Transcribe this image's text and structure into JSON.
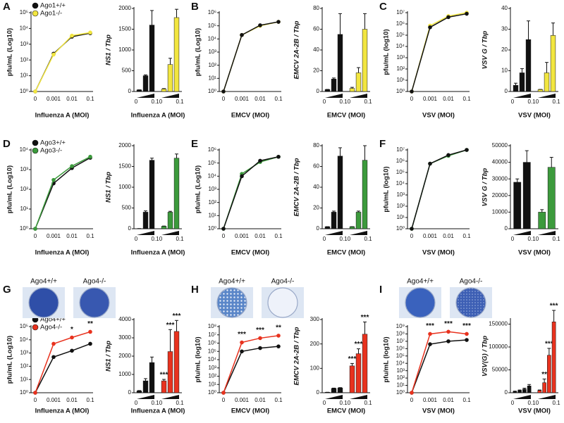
{
  "chart_data": [
    {
      "type": "line",
      "panel": "A",
      "yscale": "log",
      "categories": [
        "0",
        "0.001",
        "0.01",
        "0.1"
      ],
      "xlabel": "Influenza A (MOI)",
      "ylabel": "pfu/mL (Log10)",
      "ylim": [
        1,
        100000
      ],
      "yticks": [
        {
          "value": 1,
          "label": "10⁰"
        },
        {
          "value": 10,
          "label": "10¹"
        },
        {
          "value": 100,
          "label": "10²"
        },
        {
          "value": 1000,
          "label": "10³"
        },
        {
          "value": 10000,
          "label": "10⁴"
        },
        {
          "value": 100000,
          "label": "10⁵"
        }
      ],
      "legend": "upper left",
      "series": [
        {
          "name": "Ago1+/+",
          "color": "#111111",
          "values": [
            1,
            250,
            3000,
            5000
          ]
        },
        {
          "name": "Ago1-/-",
          "color": "#f2e640",
          "values": [
            1,
            220,
            3500,
            5500
          ]
        }
      ]
    },
    {
      "type": "bar",
      "xlabel": "Influenza A (MOI)",
      "ylabel": "NS1 / Tbp",
      "ylim": [
        0,
        2000
      ],
      "yticks": [
        0,
        500,
        1000,
        1500,
        2000
      ],
      "dose_labels": [
        "0",
        "0.1"
      ],
      "series": [
        {
          "color": "#111111",
          "values": [
            40,
            380,
            1600
          ],
          "errors": [
            0,
            20,
            350
          ]
        },
        {
          "color": "#f2e640",
          "values": [
            60,
            650,
            1780
          ],
          "errors": [
            10,
            150,
            200
          ]
        }
      ]
    },
    {
      "type": "line",
      "panel": "B",
      "yscale": "log",
      "categories": [
        "0",
        "0.001",
        "0.01",
        "0.1"
      ],
      "xlabel": "EMCV (MOI)",
      "ylabel": "pfu/mL (Log10)",
      "ylim": [
        1,
        1000000
      ],
      "yticks": [
        {
          "value": 1,
          "label": "10⁰"
        },
        {
          "value": 10,
          "label": "10¹"
        },
        {
          "value": 100,
          "label": "10²"
        },
        {
          "value": 1000,
          "label": "10³"
        },
        {
          "value": 10000,
          "label": "10⁴"
        },
        {
          "value": 100000,
          "label": "10⁵"
        },
        {
          "value": 1000000,
          "label": "10⁶"
        }
      ],
      "series": [
        {
          "color": "#f2e640",
          "values": [
            1,
            20000,
            100000,
            200000
          ]
        },
        {
          "color": "#111111",
          "values": [
            1,
            20000,
            110000,
            200000
          ]
        }
      ]
    },
    {
      "type": "bar",
      "xlabel": "EMCV (MOI)",
      "ylabel": "EMCV 2A-2B / Tbp",
      "ylim": [
        0,
        80
      ],
      "yticks": [
        0,
        20,
        40,
        60,
        80
      ],
      "dose_labels": [
        "0",
        "0.1"
      ],
      "series": [
        {
          "color": "#111111",
          "values": [
            2,
            12,
            55
          ],
          "errors": [
            0,
            1,
            20
          ]
        },
        {
          "color": "#f2e640",
          "values": [
            3,
            18,
            60
          ],
          "errors": [
            1,
            5,
            15
          ]
        }
      ]
    },
    {
      "type": "line",
      "panel": "C",
      "yscale": "log",
      "categories": [
        "0",
        "0.001",
        "0.01",
        "0.1"
      ],
      "xlabel": "VSV (MOI)",
      "ylabel": "pfu/mL (log10)",
      "ylim": [
        1,
        10000000
      ],
      "yticks": [
        {
          "value": 1,
          "label": "10⁰"
        },
        {
          "value": 10,
          "label": "10¹"
        },
        {
          "value": 100,
          "label": "10²"
        },
        {
          "value": 1000,
          "label": "10³"
        },
        {
          "value": 10000,
          "label": "10⁴"
        },
        {
          "value": 100000,
          "label": "10⁵"
        },
        {
          "value": 1000000,
          "label": "10⁶"
        },
        {
          "value": 10000000,
          "label": "10⁷"
        }
      ],
      "series": [
        {
          "color": "#f2e640",
          "values": [
            1,
            700000,
            5000000,
            10000000
          ]
        },
        {
          "color": "#111111",
          "values": [
            1,
            500000,
            4000000,
            8000000
          ]
        }
      ]
    },
    {
      "type": "bar",
      "xlabel": "VSV (MOI)",
      "ylabel": "VSV G / Tbp",
      "ylim": [
        0,
        40
      ],
      "yticks": [
        0,
        10,
        20,
        30,
        40
      ],
      "dose_labels": [
        "0",
        "0.1"
      ],
      "series": [
        {
          "color": "#111111",
          "values": [
            3,
            9,
            25
          ],
          "errors": [
            1,
            2,
            9
          ]
        },
        {
          "color": "#f2e640",
          "values": [
            1,
            9,
            27
          ],
          "errors": [
            0,
            5,
            6
          ]
        }
      ]
    },
    {
      "type": "line",
      "panel": "D",
      "yscale": "log",
      "categories": [
        "0",
        "0.001",
        "0.01",
        "0.1"
      ],
      "xlabel": "Influenza A (MOI)",
      "ylabel": "pfu/mL (Log10)",
      "ylim": [
        1,
        10000
      ],
      "yticks": [
        {
          "value": 1,
          "label": "10⁰"
        },
        {
          "value": 10,
          "label": "10¹"
        },
        {
          "value": 100,
          "label": "10²"
        },
        {
          "value": 1000,
          "label": "10³"
        },
        {
          "value": 10000,
          "label": "10⁴"
        }
      ],
      "legend": "upper left",
      "series": [
        {
          "name": "Ago3+/+",
          "color": "#111111",
          "values": [
            1,
            200,
            1200,
            4000
          ]
        },
        {
          "name": "Ago3-/-",
          "color": "#3c9a3c",
          "values": [
            1,
            300,
            1500,
            4500
          ]
        }
      ]
    },
    {
      "type": "bar",
      "xlabel": "Influenza A (MOI)",
      "ylabel": "NS1 / Tbp",
      "ylim": [
        0,
        2000
      ],
      "yticks": [
        0,
        500,
        1000,
        1500,
        2000
      ],
      "dose_labels": [
        "0",
        "0.1"
      ],
      "series": [
        {
          "color": "#111111",
          "values": [
            5,
            400,
            1650
          ],
          "errors": [
            0,
            30,
            50
          ]
        },
        {
          "color": "#3c9a3c",
          "values": [
            60,
            400,
            1700
          ],
          "errors": [
            5,
            20,
            100
          ]
        }
      ]
    },
    {
      "type": "line",
      "panel": "E",
      "yscale": "log",
      "categories": [
        "0",
        "0.001",
        "0.01",
        "0.1"
      ],
      "xlabel": "EMCV (MOI)",
      "ylabel": "pfu/mL (Log10)",
      "ylim": [
        1,
        1000000
      ],
      "yticks": [
        {
          "value": 1,
          "label": "10⁰"
        },
        {
          "value": 10,
          "label": "10¹"
        },
        {
          "value": 100,
          "label": "10²"
        },
        {
          "value": 1000,
          "label": "10³"
        },
        {
          "value": 10000,
          "label": "10⁴"
        },
        {
          "value": 100000,
          "label": "10⁵"
        },
        {
          "value": 1000000,
          "label": "10⁶"
        }
      ],
      "series": [
        {
          "color": "#3c9a3c",
          "values": [
            1,
            15000,
            120000,
            300000
          ]
        },
        {
          "color": "#111111",
          "values": [
            1,
            10000,
            150000,
            300000
          ]
        }
      ]
    },
    {
      "type": "bar",
      "xlabel": "EMCV (MOI)",
      "ylabel": "EMCV 2A-2B / Tbp",
      "ylim": [
        0,
        80
      ],
      "yticks": [
        0,
        20,
        40,
        60,
        80
      ],
      "dose_labels": [
        "0",
        "0.1"
      ],
      "series": [
        {
          "color": "#111111",
          "values": [
            2,
            16,
            70
          ],
          "errors": [
            0,
            1,
            8
          ]
        },
        {
          "color": "#3c9a3c",
          "values": [
            2,
            16,
            66
          ],
          "errors": [
            0,
            1,
            14
          ]
        }
      ]
    },
    {
      "type": "line",
      "panel": "F",
      "yscale": "log",
      "categories": [
        "0",
        "0.001",
        "0.01",
        "0.1"
      ],
      "xlabel": "VSV (MOI)",
      "ylabel": "pfu/mL (log10)",
      "ylim": [
        1,
        10000000
      ],
      "yticks": [
        {
          "value": 1,
          "label": "10⁰"
        },
        {
          "value": 10,
          "label": "10¹"
        },
        {
          "value": 100,
          "label": "10²"
        },
        {
          "value": 1000,
          "label": "10³"
        },
        {
          "value": 10000,
          "label": "10⁴"
        },
        {
          "value": 100000,
          "label": "10⁵"
        },
        {
          "value": 1000000,
          "label": "10⁶"
        },
        {
          "value": 10000000,
          "label": "10⁷"
        }
      ],
      "series": [
        {
          "color": "#3c9a3c",
          "values": [
            1,
            600000,
            3000000,
            10000000
          ]
        },
        {
          "color": "#111111",
          "values": [
            1,
            600000,
            3500000,
            10000000
          ]
        }
      ]
    },
    {
      "type": "bar",
      "xlabel": "VSV (MOI)",
      "ylabel": "VSV G  / Tbp",
      "ylim": [
        0,
        50000
      ],
      "yticks": [
        0,
        10000,
        20000,
        30000,
        40000,
        50000
      ],
      "dose_labels": [
        "0",
        "0.1"
      ],
      "series": [
        {
          "color": "#111111",
          "values": [
            28000,
            40000
          ],
          "errors": [
            2000,
            7000
          ]
        },
        {
          "color": "#3c9a3c",
          "values": [
            10000,
            37000
          ],
          "errors": [
            1500,
            6000
          ]
        }
      ]
    },
    {
      "type": "line",
      "panel": "G",
      "yscale": "log",
      "plate_labels": [
        "Ago4+/+",
        "Ago4-/-"
      ],
      "categories": [
        "0",
        "0.001",
        "0.01",
        "0.1"
      ],
      "xlabel": "Influenza A (MOI)",
      "ylabel": "pfu/mL (Log10)",
      "ylim": [
        1,
        100000
      ],
      "yticks": [
        {
          "value": 1,
          "label": "10⁰"
        },
        {
          "value": 10,
          "label": "10¹"
        },
        {
          "value": 100,
          "label": "10²"
        },
        {
          "value": 1000,
          "label": "10³"
        },
        {
          "value": 10000,
          "label": "10⁴"
        },
        {
          "value": 100000,
          "label": "10⁵"
        }
      ],
      "legend": "upper left",
      "series": [
        {
          "name": "Ago4+/+",
          "color": "#111111",
          "values": [
            1,
            500,
            1500,
            5000
          ]
        },
        {
          "name": "Ago4-/-",
          "color": "#e8321e",
          "values": [
            1,
            5000,
            15000,
            40000
          ],
          "significance": [
            null,
            null,
            "*",
            "**"
          ]
        }
      ]
    },
    {
      "type": "bar",
      "xlabel": "Influenza A (MOI)",
      "ylabel": "NS1 / Tbp",
      "ylim": [
        0,
        4000
      ],
      "yticks": [
        0,
        1000,
        2000,
        3000,
        4000
      ],
      "dose_labels": [
        "0",
        "0.1"
      ],
      "series": [
        {
          "color": "#111111",
          "values": [
            100,
            650,
            1650
          ],
          "errors": [
            20,
            120,
            300
          ]
        },
        {
          "color": "#e8321e",
          "values": [
            650,
            2250,
            3350
          ],
          "errors": [
            80,
            1200,
            600
          ],
          "significance": [
            "***",
            "***",
            "***"
          ]
        }
      ]
    },
    {
      "type": "line",
      "panel": "H",
      "yscale": "log",
      "plate_labels": [
        "Ago4+/+",
        "Ago4-/-"
      ],
      "categories": [
        "0",
        "0.001",
        "0.01",
        "0.1"
      ],
      "xlabel": "EMCV (MOI)",
      "ylabel": "pfu/mL (log10)",
      "ylim": [
        1,
        100000000
      ],
      "yticks": [
        {
          "value": 1,
          "label": "10⁰"
        },
        {
          "value": 10,
          "label": "10¹"
        },
        {
          "value": 100,
          "label": "10²"
        },
        {
          "value": 1000,
          "label": "10³"
        },
        {
          "value": 10000,
          "label": "10⁴"
        },
        {
          "value": 100000,
          "label": "10⁵"
        },
        {
          "value": 1000000,
          "label": "10⁶"
        },
        {
          "value": 10000000,
          "label": "10⁷"
        },
        {
          "value": 100000000,
          "label": "10⁸"
        }
      ],
      "series": [
        {
          "color": "#111111",
          "values": [
            1,
            100000,
            250000,
            400000
          ]
        },
        {
          "color": "#e8321e",
          "values": [
            1,
            1200000,
            4000000,
            8000000
          ],
          "significance": [
            null,
            "***",
            "***",
            "**"
          ]
        }
      ]
    },
    {
      "type": "bar",
      "xlabel": "EMCV (MOI)",
      "ylabel": "EMCV 2A-2B / Tbp",
      "ylim": [
        0,
        300
      ],
      "yticks": [
        0,
        100,
        200,
        300
      ],
      "dose_labels": [
        "0",
        "0.1"
      ],
      "series": [
        {
          "color": "#111111",
          "values": [
            2,
            18,
            20
          ],
          "errors": [
            0,
            1,
            1
          ]
        },
        {
          "color": "#e8321e",
          "values": [
            110,
            160,
            240
          ],
          "errors": [
            10,
            20,
            50
          ],
          "significance": [
            "***",
            "***",
            "***"
          ]
        }
      ]
    },
    {
      "type": "line",
      "panel": "I",
      "yscale": "log",
      "plate_labels": [
        "Ago4+/+",
        "Ago4-/-"
      ],
      "categories": [
        "0",
        "0.001",
        "0.01",
        "0.1"
      ],
      "xlabel": "VSV (MOI)",
      "ylabel": "pfu/mL (log10)",
      "ylim": [
        1,
        1000000000
      ],
      "yticks": [
        {
          "value": 1,
          "label": "10⁰"
        },
        {
          "value": 10,
          "label": "10¹"
        },
        {
          "value": 100,
          "label": "10²"
        },
        {
          "value": 1000,
          "label": "10³"
        },
        {
          "value": 10000,
          "label": "10⁴"
        },
        {
          "value": 100000,
          "label": "10⁵"
        },
        {
          "value": 1000000,
          "label": "10⁶"
        },
        {
          "value": 10000000,
          "label": "10⁷"
        },
        {
          "value": 100000000,
          "label": "10⁸"
        },
        {
          "value": 1000000000,
          "label": "10⁹"
        }
      ],
      "series": [
        {
          "color": "#111111",
          "values": [
            1,
            4000000,
            10000000,
            15000000
          ]
        },
        {
          "color": "#e8321e",
          "values": [
            1,
            100000000,
            200000000,
            100000000
          ],
          "significance": [
            null,
            "***",
            "***",
            "***"
          ]
        }
      ]
    },
    {
      "type": "bar",
      "xlabel": "VSV (MOI)",
      "ylabel": "VSV(G) / Tbp",
      "ylim": [
        0,
        160000
      ],
      "yticks": [
        0,
        50000,
        100000,
        150000
      ],
      "dose_labels": [
        "0",
        "0.1"
      ],
      "series": [
        {
          "color": "#111111",
          "values": [
            3000,
            5000,
            8000,
            15000
          ],
          "errors": [
            500,
            1000,
            2000,
            3000
          ]
        },
        {
          "color": "#e8321e",
          "values": [
            5000,
            22000,
            82000,
            155000
          ],
          "errors": [
            1000,
            8000,
            15000,
            25000
          ],
          "significance": [
            null,
            "**",
            "***",
            "***"
          ]
        }
      ]
    }
  ]
}
